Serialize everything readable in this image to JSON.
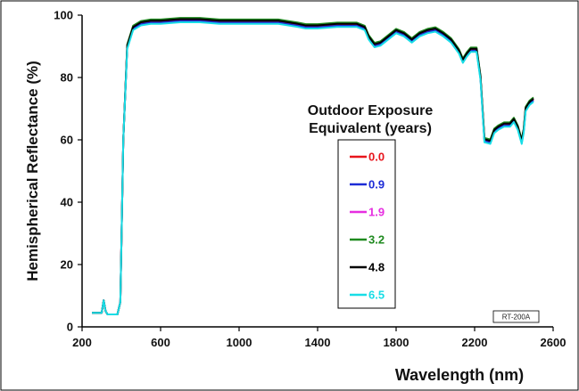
{
  "chart_data": {
    "type": "line",
    "title": "",
    "xlabel": "Wavelength (nm)",
    "ylabel": "Hemispherical Reflectance (%)",
    "xlim": [
      200,
      2600
    ],
    "ylim": [
      0,
      100
    ],
    "x_ticks": [
      200,
      600,
      1000,
      1400,
      1800,
      2200,
      2600
    ],
    "y_ticks": [
      0,
      20,
      40,
      60,
      80,
      100
    ],
    "grid": false,
    "legend": {
      "title_line1": "Outdoor Exposure",
      "title_line2": "Equivalent (years)",
      "placement": "center-right"
    },
    "stamp": "RT-200A",
    "series": [
      {
        "name": "0.0",
        "color": "#e8141c",
        "offset": 0.0
      },
      {
        "name": "0.9",
        "color": "#1c2bd6",
        "offset": -0.4
      },
      {
        "name": "1.9",
        "color": "#e62ee0",
        "offset": 0.3
      },
      {
        "name": "3.2",
        "color": "#1f8a1f",
        "offset": 0.6
      },
      {
        "name": "4.8",
        "color": "#000000",
        "offset": 0.2
      },
      {
        "name": "6.5",
        "color": "#18dde6",
        "offset": -0.8
      }
    ],
    "x": [
      250,
      300,
      310,
      320,
      330,
      360,
      380,
      395,
      410,
      430,
      460,
      500,
      550,
      600,
      700,
      800,
      900,
      1000,
      1100,
      1200,
      1300,
      1340,
      1400,
      1500,
      1600,
      1640,
      1660,
      1690,
      1720,
      1760,
      1800,
      1840,
      1880,
      1920,
      1960,
      2000,
      2040,
      2080,
      2120,
      2140,
      2160,
      2180,
      2210,
      2230,
      2250,
      2280,
      2300,
      2320,
      2350,
      2380,
      2400,
      2420,
      2440,
      2450,
      2460,
      2480,
      2500
    ],
    "y_base": [
      4.5,
      4.5,
      8.5,
      5.0,
      4.0,
      4.0,
      4.0,
      8.0,
      60.0,
      90.0,
      96.0,
      97.5,
      98.0,
      98.0,
      98.5,
      98.5,
      98.0,
      98.0,
      98.0,
      98.0,
      97.0,
      96.5,
      96.5,
      97.0,
      97.0,
      96.0,
      93.0,
      90.5,
      91.0,
      93.0,
      95.0,
      94.0,
      92.0,
      94.0,
      95.0,
      95.5,
      94.0,
      92.0,
      88.5,
      85.5,
      87.5,
      89.0,
      89.0,
      80.0,
      60.0,
      59.5,
      63.0,
      64.0,
      65.0,
      65.0,
      66.5,
      64.0,
      59.5,
      63.0,
      70.0,
      72.0,
      73.0
    ]
  }
}
